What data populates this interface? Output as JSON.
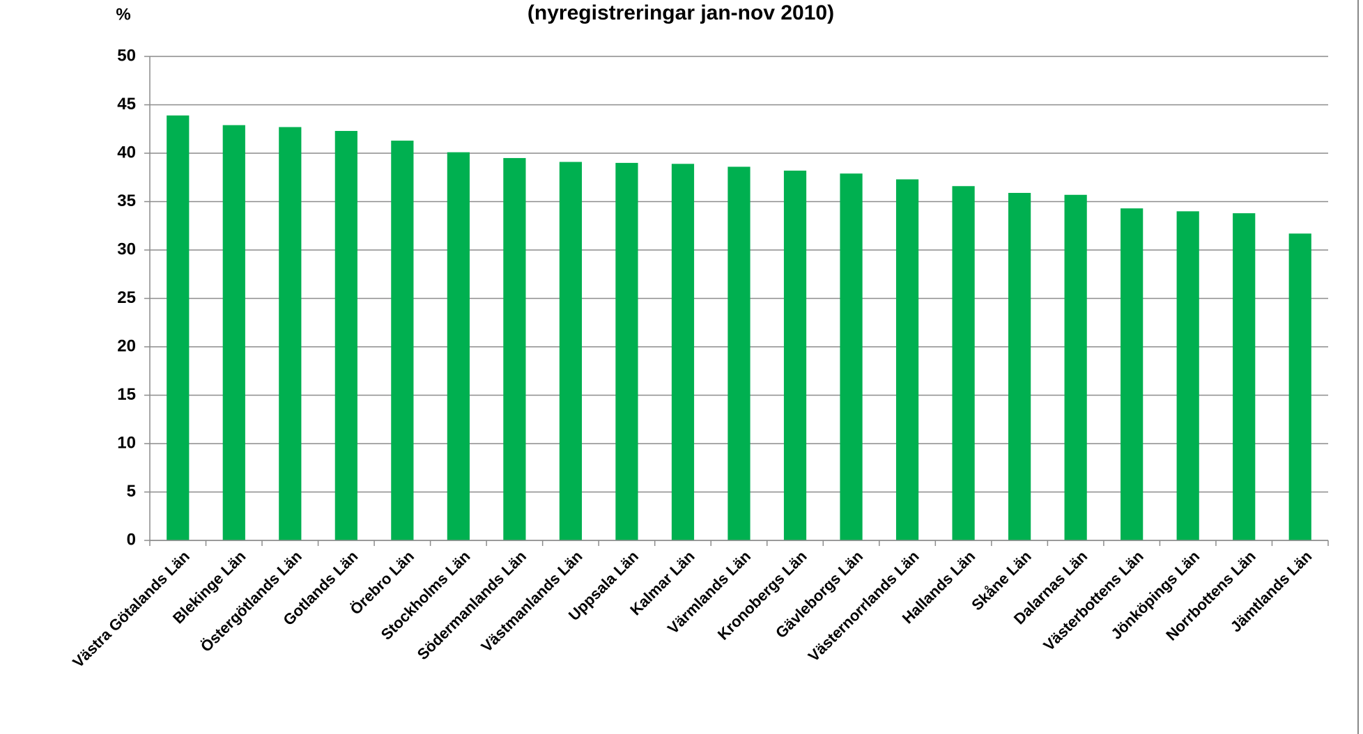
{
  "chart_data": {
    "type": "bar",
    "title": "(nyregistreringar jan-nov 2010)",
    "y_label": "%",
    "categories": [
      "Västra Götalands Län",
      "Blekinge Län",
      "Östergötlands Län",
      "Gotlands Län",
      "Örebro Län",
      "Stockholms Län",
      "Södermanlands Län",
      "Västmanlands Län",
      "Uppsala Län",
      "Kalmar Län",
      "Värmlands Län",
      "Kronobergs Län",
      "Gävleborgs Län",
      "Västernorrlands Län",
      "Hallands Län",
      "Skåne Län",
      "Dalarnas Län",
      "Västerbottens Län",
      "Jönköpings Län",
      "Norrbottens Län",
      "Jämtlands Län"
    ],
    "values": [
      43.9,
      42.9,
      42.7,
      42.3,
      41.3,
      40.1,
      39.5,
      39.1,
      39.0,
      38.9,
      38.6,
      38.2,
      37.9,
      37.3,
      36.6,
      35.9,
      35.7,
      34.3,
      34.0,
      33.8,
      31.7
    ],
    "color": "#00b050",
    "ylim": [
      0,
      50
    ],
    "yticks": [
      0,
      5,
      10,
      15,
      20,
      25,
      30,
      35,
      40,
      45,
      50
    ],
    "grid": true
  }
}
